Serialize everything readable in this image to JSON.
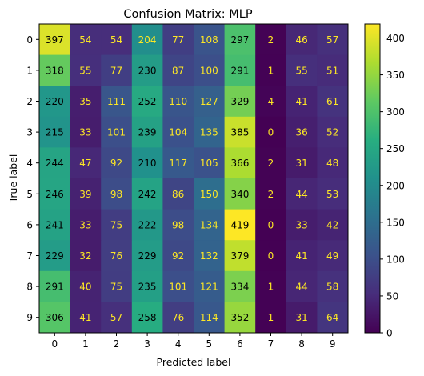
{
  "chart_data": {
    "type": "heatmap",
    "title": "Confusion Matrix: MLP",
    "xlabel": "Predicted label",
    "ylabel": "True label",
    "x_categories": [
      "0",
      "1",
      "2",
      "3",
      "4",
      "5",
      "6",
      "7",
      "8",
      "9"
    ],
    "y_categories": [
      "0",
      "1",
      "2",
      "3",
      "4",
      "5",
      "6",
      "7",
      "8",
      "9"
    ],
    "values": [
      [
        397,
        54,
        54,
        204,
        77,
        108,
        297,
        2,
        46,
        57
      ],
      [
        318,
        55,
        77,
        230,
        87,
        100,
        291,
        1,
        55,
        51
      ],
      [
        220,
        35,
        111,
        252,
        110,
        127,
        329,
        4,
        41,
        61
      ],
      [
        215,
        33,
        101,
        239,
        104,
        135,
        385,
        0,
        36,
        52
      ],
      [
        244,
        47,
        92,
        210,
        117,
        105,
        366,
        2,
        31,
        48
      ],
      [
        246,
        39,
        98,
        242,
        86,
        150,
        340,
        2,
        44,
        53
      ],
      [
        241,
        33,
        75,
        222,
        98,
        134,
        419,
        0,
        33,
        42
      ],
      [
        229,
        32,
        76,
        229,
        92,
        132,
        379,
        0,
        41,
        49
      ],
      [
        291,
        40,
        75,
        235,
        101,
        121,
        334,
        1,
        44,
        58
      ],
      [
        306,
        41,
        57,
        258,
        76,
        114,
        352,
        1,
        31,
        64
      ]
    ],
    "colormap": "viridis",
    "colorbar": {
      "range": [
        0,
        419
      ],
      "ticks": [
        0,
        50,
        100,
        150,
        200,
        250,
        300,
        350,
        400
      ]
    },
    "text_colors": {
      "on_dark": "#fde725",
      "on_light": "#000000"
    }
  }
}
